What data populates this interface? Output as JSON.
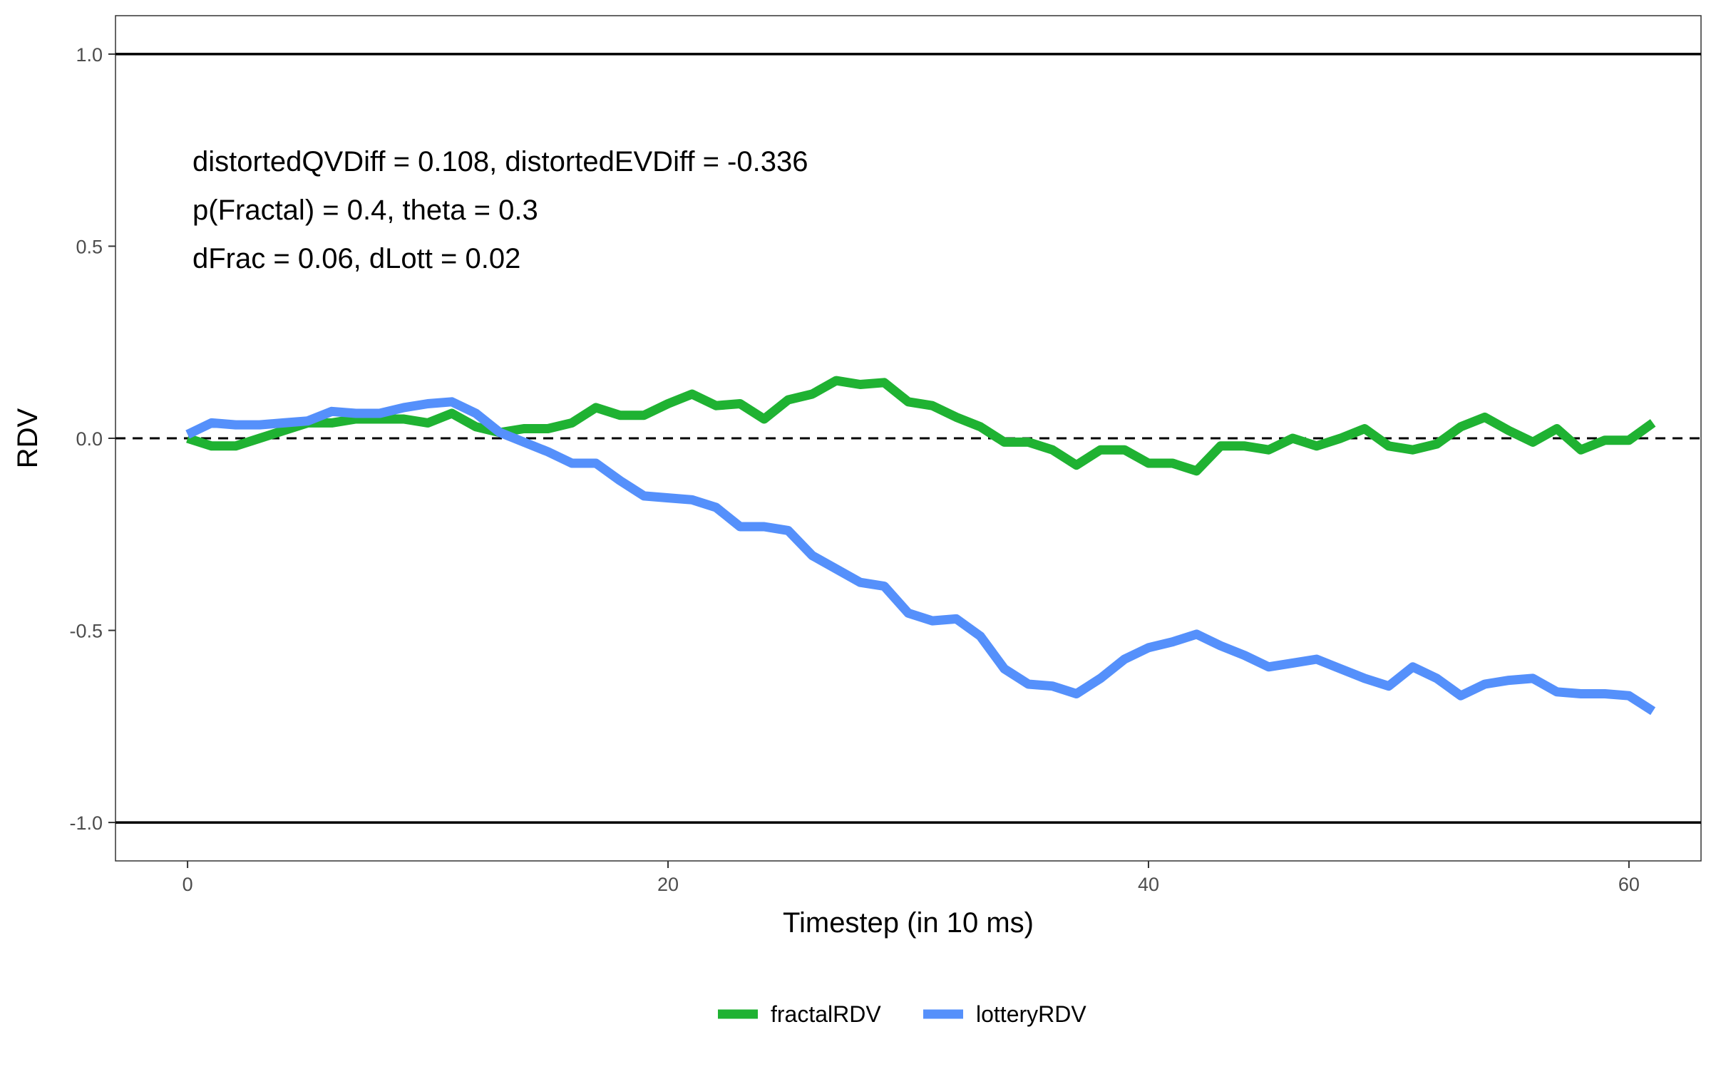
{
  "chart_data": {
    "type": "line",
    "title": "",
    "xlabel": "Timestep (in 10 ms)",
    "ylabel": "RDV",
    "xlim": [
      -3,
      63
    ],
    "ylim": [
      -1.1,
      1.1
    ],
    "xticks": [
      0,
      20,
      40,
      60
    ],
    "yticks": [
      -1.0,
      -0.5,
      0.0,
      0.5,
      1.0
    ],
    "ytick_labels": [
      "-1.0",
      "-0.5",
      "0.0",
      "0.5",
      "1.0"
    ],
    "grid": false,
    "legend_position": "bottom",
    "reference_lines": [
      {
        "y": 1.0,
        "style": "solid"
      },
      {
        "y": -1.0,
        "style": "solid"
      },
      {
        "y": 0.0,
        "style": "dashed"
      }
    ],
    "annotations": [
      "distortedQVDiff = 0.108, distortedEVDiff = -0.336",
      "p(Fractal) = 0.4, theta = 0.3",
      "dFrac = 0.06, dLott = 0.02"
    ],
    "x": [
      0,
      1,
      2,
      3,
      4,
      5,
      6,
      7,
      8,
      9,
      10,
      11,
      12,
      13,
      14,
      15,
      16,
      17,
      18,
      19,
      20,
      21,
      22,
      23,
      24,
      25,
      26,
      27,
      28,
      29,
      30,
      31,
      32,
      33,
      34,
      35,
      36,
      37,
      38,
      39,
      40,
      41,
      42,
      43,
      44,
      45,
      46,
      47,
      48,
      49,
      50,
      51,
      52,
      53,
      54,
      55,
      56,
      57,
      58,
      59,
      60,
      61
    ],
    "series": [
      {
        "name": "fractalRDV",
        "color": "#1fb232",
        "values": [
          0.0,
          -0.02,
          -0.02,
          0.0,
          0.02,
          0.04,
          0.04,
          0.05,
          0.05,
          0.05,
          0.04,
          0.065,
          0.03,
          0.015,
          0.025,
          0.025,
          0.04,
          0.08,
          0.06,
          0.06,
          0.09,
          0.115,
          0.085,
          0.09,
          0.05,
          0.1,
          0.115,
          0.15,
          0.14,
          0.145,
          0.095,
          0.085,
          0.055,
          0.03,
          -0.01,
          -0.01,
          -0.03,
          -0.07,
          -0.03,
          -0.03,
          -0.065,
          -0.065,
          -0.085,
          -0.02,
          -0.02,
          -0.03,
          0.0,
          -0.02,
          0.0,
          0.025,
          -0.02,
          -0.03,
          -0.015,
          0.03,
          0.055,
          0.02,
          -0.01,
          0.025,
          -0.03,
          -0.005,
          -0.005,
          0.04
        ]
      },
      {
        "name": "lotteryRDV",
        "color": "#5590fb",
        "values": [
          0.01,
          0.04,
          0.035,
          0.035,
          0.04,
          0.045,
          0.07,
          0.065,
          0.065,
          0.08,
          0.09,
          0.095,
          0.065,
          0.015,
          -0.01,
          -0.035,
          -0.065,
          -0.065,
          -0.11,
          -0.15,
          -0.155,
          -0.16,
          -0.18,
          -0.23,
          -0.23,
          -0.24,
          -0.305,
          -0.34,
          -0.375,
          -0.385,
          -0.455,
          -0.475,
          -0.47,
          -0.515,
          -0.6,
          -0.64,
          -0.645,
          -0.665,
          -0.625,
          -0.575,
          -0.545,
          -0.53,
          -0.51,
          -0.54,
          -0.565,
          -0.595,
          -0.585,
          -0.575,
          -0.6,
          -0.625,
          -0.645,
          -0.595,
          -0.625,
          -0.67,
          -0.64,
          -0.63,
          -0.625,
          -0.66,
          -0.665,
          -0.665,
          -0.67,
          -0.71
        ]
      }
    ]
  }
}
